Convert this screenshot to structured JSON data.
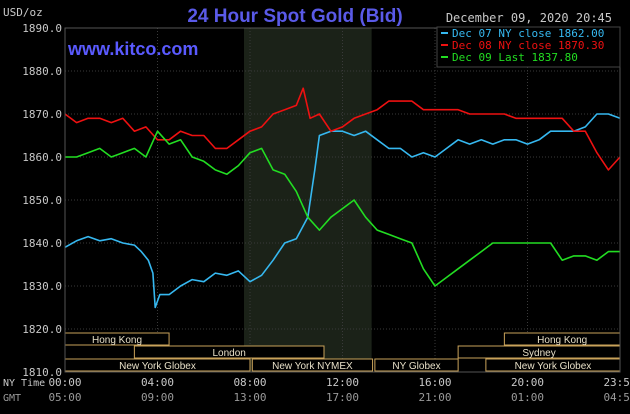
{
  "brand": {
    "url_text": "www.kitco.com"
  },
  "colors": {
    "background": "#000000",
    "plot_bg": "#000000",
    "grid": "#3a3a3a",
    "axis_text": "#c8c8c8",
    "title": "#5a5ae8",
    "brand": "#5a5aff",
    "highlight": "#1b2218",
    "series_dec07": "#36b8f0",
    "series_dec08": "#ee1111",
    "series_dec09": "#22dd22",
    "band_border": "#c9a25a"
  },
  "chart_data": {
    "type": "line",
    "title": "24 Hour Spot Gold (Bid)",
    "date_label": "December 09, 2020 20:45",
    "ylabel": "USD/oz",
    "ylim": [
      1810,
      1890
    ],
    "yticks": [
      1810,
      1820,
      1830,
      1840,
      1850,
      1860,
      1870,
      1880,
      1890
    ],
    "ytick_labels": [
      "1810.0",
      "1820.0",
      "1830.0",
      "1840.0",
      "1850.0",
      "1860.0",
      "1870.0",
      "1880.0",
      "1890.0"
    ],
    "xlim": [
      0,
      24
    ],
    "xticks": [
      0,
      4,
      8,
      12,
      16,
      20,
      24
    ],
    "xtick_labels_ny": [
      "00:00",
      "04:00",
      "08:00",
      "12:00",
      "16:00",
      "20:00",
      "23:59"
    ],
    "xtick_labels_gmt": [
      "05:00",
      "09:00",
      "13:00",
      "17:00",
      "21:00",
      "01:00",
      "04:59"
    ],
    "x_row_labels": {
      "ny": "NY Time",
      "gmt": "GMT"
    },
    "grid": true,
    "legend_position": "top-right",
    "highlight_range": [
      8,
      13
    ],
    "sessions": [
      {
        "name": "Hong Kong",
        "start": 0,
        "end": 4.5,
        "row": 0
      },
      {
        "name": "Hong Kong",
        "start": 19,
        "end": 24,
        "row": 0
      },
      {
        "name": "London",
        "start": 3,
        "end": 11.2,
        "row": 1
      },
      {
        "name": "Sydney",
        "start": 17,
        "end": 24,
        "row": 1
      },
      {
        "name": "New York Globex",
        "start": 0,
        "end": 8,
        "row": 2
      },
      {
        "name": "New York NYMEX",
        "start": 8.1,
        "end": 13.3,
        "row": 2
      },
      {
        "name": "NY Globex",
        "start": 13.4,
        "end": 17,
        "row": 2
      },
      {
        "name": "New York Globex",
        "start": 18.2,
        "end": 24,
        "row": 2
      }
    ],
    "series": [
      {
        "name": "Dec 07 NY close 1862.00",
        "points": [
          [
            0,
            1839
          ],
          [
            0.5,
            1840.5
          ],
          [
            1,
            1841.5
          ],
          [
            1.5,
            1840.5
          ],
          [
            2,
            1841
          ],
          [
            2.5,
            1840
          ],
          [
            3,
            1839.5
          ],
          [
            3.3,
            1838
          ],
          [
            3.6,
            1836
          ],
          [
            3.8,
            1833
          ],
          [
            3.9,
            1825
          ],
          [
            4.1,
            1828
          ],
          [
            4.5,
            1828
          ],
          [
            5,
            1830
          ],
          [
            5.5,
            1831.5
          ],
          [
            6,
            1831
          ],
          [
            6.5,
            1833
          ],
          [
            7,
            1832.5
          ],
          [
            7.5,
            1833.5
          ],
          [
            8,
            1831
          ],
          [
            8.5,
            1832.5
          ],
          [
            9,
            1836
          ],
          [
            9.5,
            1840
          ],
          [
            10,
            1841
          ],
          [
            10.5,
            1846
          ],
          [
            10.8,
            1857
          ],
          [
            11,
            1865
          ],
          [
            11.5,
            1866
          ],
          [
            12,
            1866
          ],
          [
            12.5,
            1865
          ],
          [
            13,
            1866
          ],
          [
            13.5,
            1864
          ],
          [
            14,
            1862
          ],
          [
            14.5,
            1862
          ],
          [
            15,
            1860
          ],
          [
            15.5,
            1861
          ],
          [
            16,
            1860
          ],
          [
            16.5,
            1862
          ],
          [
            17,
            1864
          ],
          [
            17.5,
            1863
          ],
          [
            18,
            1864
          ],
          [
            18.5,
            1863
          ],
          [
            19,
            1864
          ],
          [
            19.5,
            1864
          ],
          [
            20,
            1863
          ],
          [
            20.5,
            1864
          ],
          [
            21,
            1866
          ],
          [
            21.5,
            1866
          ],
          [
            22,
            1866
          ],
          [
            22.5,
            1867
          ],
          [
            23,
            1870
          ],
          [
            23.5,
            1870
          ],
          [
            24,
            1869
          ]
        ]
      },
      {
        "name": "Dec 08 NY close 1870.30",
        "points": [
          [
            0,
            1870
          ],
          [
            0.5,
            1868
          ],
          [
            1,
            1869
          ],
          [
            1.5,
            1869
          ],
          [
            2,
            1868
          ],
          [
            2.5,
            1869
          ],
          [
            3,
            1866
          ],
          [
            3.5,
            1867
          ],
          [
            4,
            1864
          ],
          [
            4.5,
            1864
          ],
          [
            5,
            1866
          ],
          [
            5.5,
            1865
          ],
          [
            6,
            1865
          ],
          [
            6.5,
            1862
          ],
          [
            7,
            1862
          ],
          [
            7.5,
            1864
          ],
          [
            8,
            1866
          ],
          [
            8.5,
            1867
          ],
          [
            9,
            1870
          ],
          [
            9.5,
            1871
          ],
          [
            10,
            1872
          ],
          [
            10.3,
            1876
          ],
          [
            10.6,
            1869
          ],
          [
            11,
            1870
          ],
          [
            11.5,
            1866
          ],
          [
            12,
            1867
          ],
          [
            12.5,
            1869
          ],
          [
            13,
            1870
          ],
          [
            13.5,
            1871
          ],
          [
            14,
            1873
          ],
          [
            14.5,
            1873
          ],
          [
            15,
            1873
          ],
          [
            15.5,
            1871
          ],
          [
            16,
            1871
          ],
          [
            16.5,
            1871
          ],
          [
            17,
            1871
          ],
          [
            17.5,
            1870
          ],
          [
            18,
            1870
          ],
          [
            18.5,
            1870
          ],
          [
            19,
            1870
          ],
          [
            19.5,
            1869
          ],
          [
            20,
            1869
          ],
          [
            20.5,
            1869
          ],
          [
            21,
            1869
          ],
          [
            21.5,
            1869
          ],
          [
            22,
            1866
          ],
          [
            22.5,
            1866
          ],
          [
            23,
            1861
          ],
          [
            23.5,
            1857
          ],
          [
            24,
            1860
          ]
        ]
      },
      {
        "name": "Dec 09 Last 1837.80",
        "points": [
          [
            0,
            1860
          ],
          [
            0.5,
            1860
          ],
          [
            1,
            1861
          ],
          [
            1.5,
            1862
          ],
          [
            2,
            1860
          ],
          [
            2.5,
            1861
          ],
          [
            3,
            1862
          ],
          [
            3.5,
            1860
          ],
          [
            4,
            1866
          ],
          [
            4.5,
            1863
          ],
          [
            5,
            1864
          ],
          [
            5.5,
            1860
          ],
          [
            6,
            1859
          ],
          [
            6.5,
            1857
          ],
          [
            7,
            1856
          ],
          [
            7.5,
            1858
          ],
          [
            8,
            1861
          ],
          [
            8.5,
            1862
          ],
          [
            9,
            1857
          ],
          [
            9.5,
            1856
          ],
          [
            10,
            1852
          ],
          [
            10.5,
            1846
          ],
          [
            11,
            1843
          ],
          [
            11.5,
            1846
          ],
          [
            12,
            1848
          ],
          [
            12.5,
            1850
          ],
          [
            13,
            1846
          ],
          [
            13.5,
            1843
          ],
          [
            14,
            1842
          ],
          [
            14.5,
            1841
          ],
          [
            15,
            1840
          ],
          [
            15.5,
            1834
          ],
          [
            16,
            1830
          ],
          [
            16.5,
            1832
          ],
          [
            17,
            1834
          ],
          [
            17.5,
            1836
          ],
          [
            18,
            1838
          ],
          [
            18.5,
            1840
          ],
          [
            19,
            1840
          ],
          [
            19.5,
            1840
          ],
          [
            20,
            1840
          ],
          [
            20.5,
            1840
          ],
          [
            21,
            1840
          ],
          [
            21.5,
            1836
          ],
          [
            22,
            1837
          ],
          [
            22.5,
            1837
          ],
          [
            23,
            1836
          ],
          [
            23.5,
            1838
          ],
          [
            24,
            1838
          ]
        ]
      }
    ]
  }
}
